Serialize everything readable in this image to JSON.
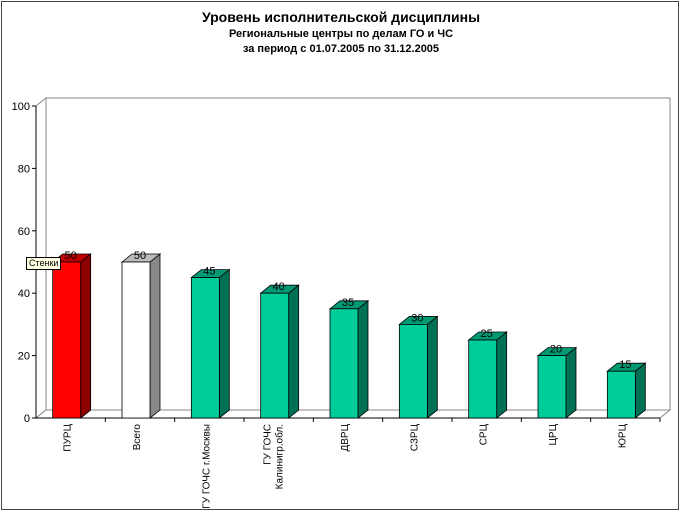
{
  "chart_data": {
    "type": "bar",
    "title": "Уровень исполнительской дисциплины",
    "subtitle": "Региональные центры по делам ГО и ЧС",
    "period": "за период с 01.07.2005 по 31.12.2005",
    "categories": [
      "ПУРЦ",
      "Всего",
      "ГУ ГОЧС г.Москвы",
      "ГУ ГОЧС\nКалинигр.обл.",
      "ДВРЦ",
      "СЗРЦ",
      "СРЦ",
      "ЦРЦ",
      "ЮРЦ"
    ],
    "values": [
      50,
      50,
      45,
      40,
      35,
      30,
      25,
      20,
      15
    ],
    "ylim": [
      0,
      100
    ],
    "yticks": [
      0,
      20,
      40,
      60,
      80,
      100
    ],
    "grid": false,
    "xlabel": "",
    "ylabel": "",
    "tooltip": "Стенки",
    "colors": {
      "highlight": "#ff0000",
      "total": "#ffffff",
      "default": "#00cc99"
    },
    "bar_color_keys": [
      "highlight",
      "total",
      "default",
      "default",
      "default",
      "default",
      "default",
      "default",
      "default"
    ]
  }
}
